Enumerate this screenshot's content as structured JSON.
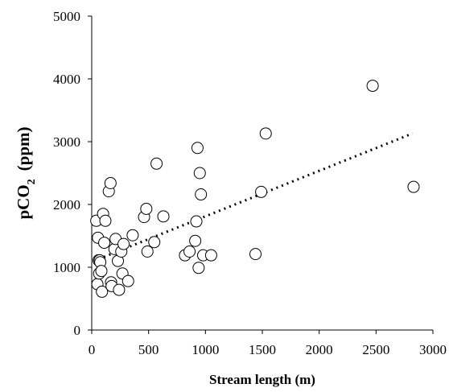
{
  "chart_data": {
    "type": "scatter",
    "title": "",
    "xlabel": "Stream length (m)",
    "ylabel": {
      "main": "pCO",
      "subscript": "2",
      "unit": "(ppm)"
    },
    "xlim": [
      0,
      3000
    ],
    "ylim": [
      0,
      5000
    ],
    "xticks": [
      0,
      500,
      1000,
      1500,
      2000,
      2500,
      3000
    ],
    "yticks": [
      0,
      1000,
      2000,
      3000,
      4000,
      5000
    ],
    "grid": false,
    "legend": "none",
    "marker": "open-circle",
    "trendline": {
      "style": "dotted",
      "x": [
        60,
        2820
      ],
      "y": [
        1130,
        3130
      ]
    },
    "x": [
      40,
      50,
      55,
      60,
      65,
      70,
      75,
      85,
      90,
      100,
      110,
      120,
      150,
      165,
      170,
      175,
      200,
      210,
      230,
      240,
      260,
      270,
      280,
      320,
      360,
      460,
      480,
      490,
      550,
      570,
      630,
      820,
      860,
      910,
      920,
      930,
      940,
      950,
      960,
      980,
      1050,
      1440,
      1490,
      1530,
      2470,
      2830
    ],
    "y": [
      1740,
      730,
      1470,
      1110,
      900,
      1110,
      1080,
      940,
      610,
      1850,
      1390,
      1740,
      2210,
      2340,
      760,
      700,
      1290,
      1450,
      1100,
      640,
      1250,
      900,
      1370,
      780,
      1510,
      1800,
      1930,
      1250,
      1400,
      2650,
      1810,
      1190,
      1250,
      1420,
      1730,
      2900,
      990,
      2500,
      2160,
      1190,
      1190,
      1210,
      2200,
      3130,
      3890,
      2280
    ]
  }
}
